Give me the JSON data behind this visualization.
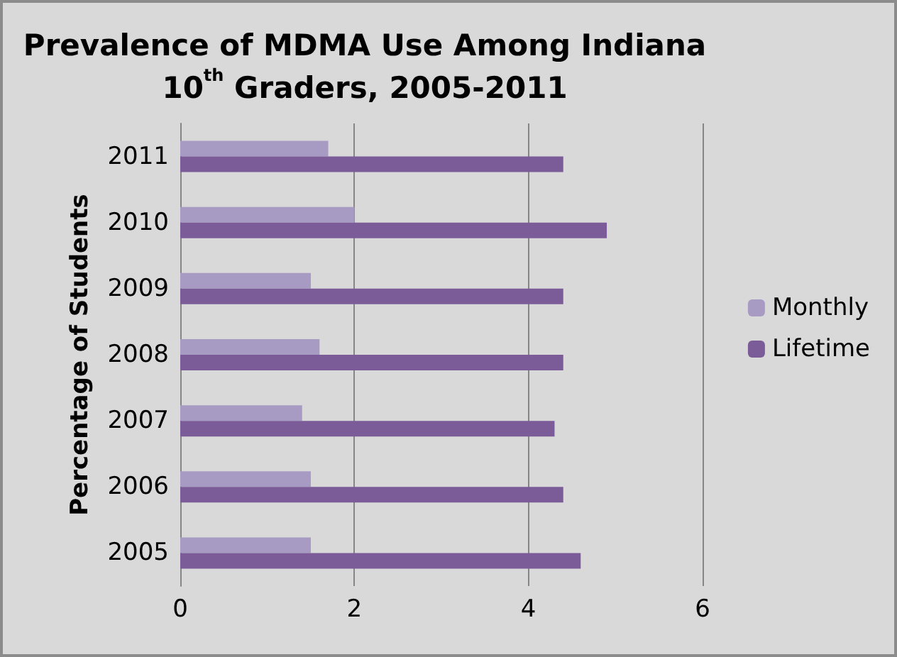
{
  "chart_data": {
    "type": "bar",
    "orientation": "horizontal",
    "title": "Prevalence of MDMA Use Among Indiana\n10$^{th}$ Graders, 2005-2011",
    "ylabel": "Percentage of Students",
    "categories": [
      "2011",
      "2010",
      "2009",
      "2008",
      "2007",
      "2006",
      "2005"
    ],
    "series": [
      {
        "name": "Monthly",
        "color": "#a79bc4",
        "values": [
          1.7,
          2.0,
          1.5,
          1.6,
          1.4,
          1.5,
          1.5
        ]
      },
      {
        "name": "Lifetime",
        "color": "#7b5c99",
        "values": [
          4.4,
          4.9,
          4.4,
          4.4,
          4.3,
          4.4,
          4.6
        ]
      }
    ],
    "xlim": [
      0,
      6
    ],
    "xticks": [
      0,
      2,
      4,
      6
    ],
    "grid": "x",
    "legend": "right"
  }
}
